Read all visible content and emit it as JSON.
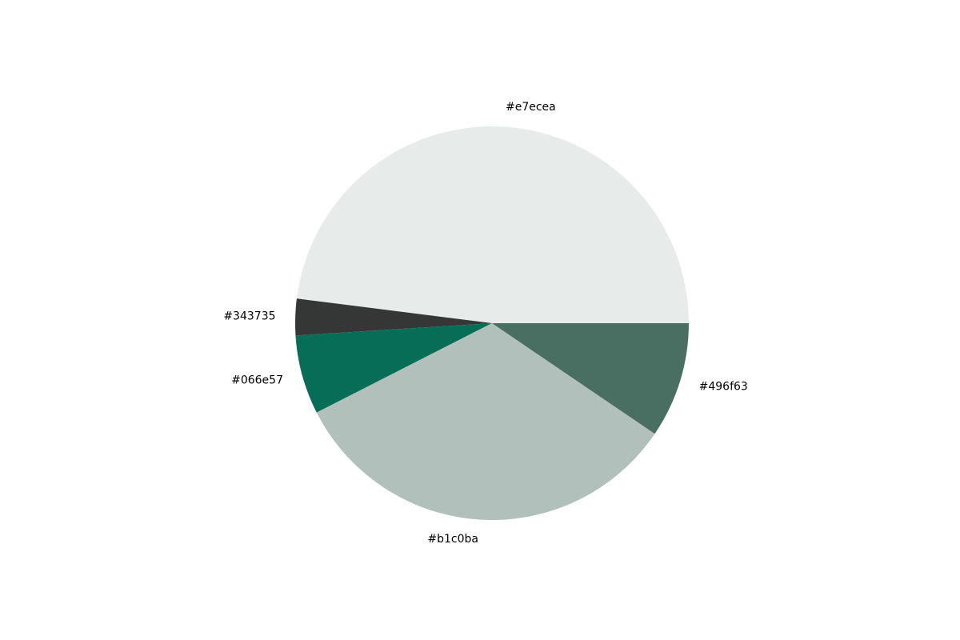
{
  "chart_data": {
    "type": "pie",
    "title": "",
    "slices": [
      {
        "label": "#e7ecea",
        "value": 48.0,
        "color": "#e7ecea"
      },
      {
        "label": "#343735",
        "value": 3.0,
        "color": "#343735"
      },
      {
        "label": "#066e57",
        "value": 6.5,
        "color": "#066e57"
      },
      {
        "label": "#b1c0ba",
        "value": 33.0,
        "color": "#b1c0ba"
      },
      {
        "label": "#496f63",
        "value": 9.5,
        "color": "#496f63"
      }
    ],
    "start_angle": "0 degrees (3 o'clock)",
    "direction": "counterclockwise",
    "legend": "none"
  }
}
